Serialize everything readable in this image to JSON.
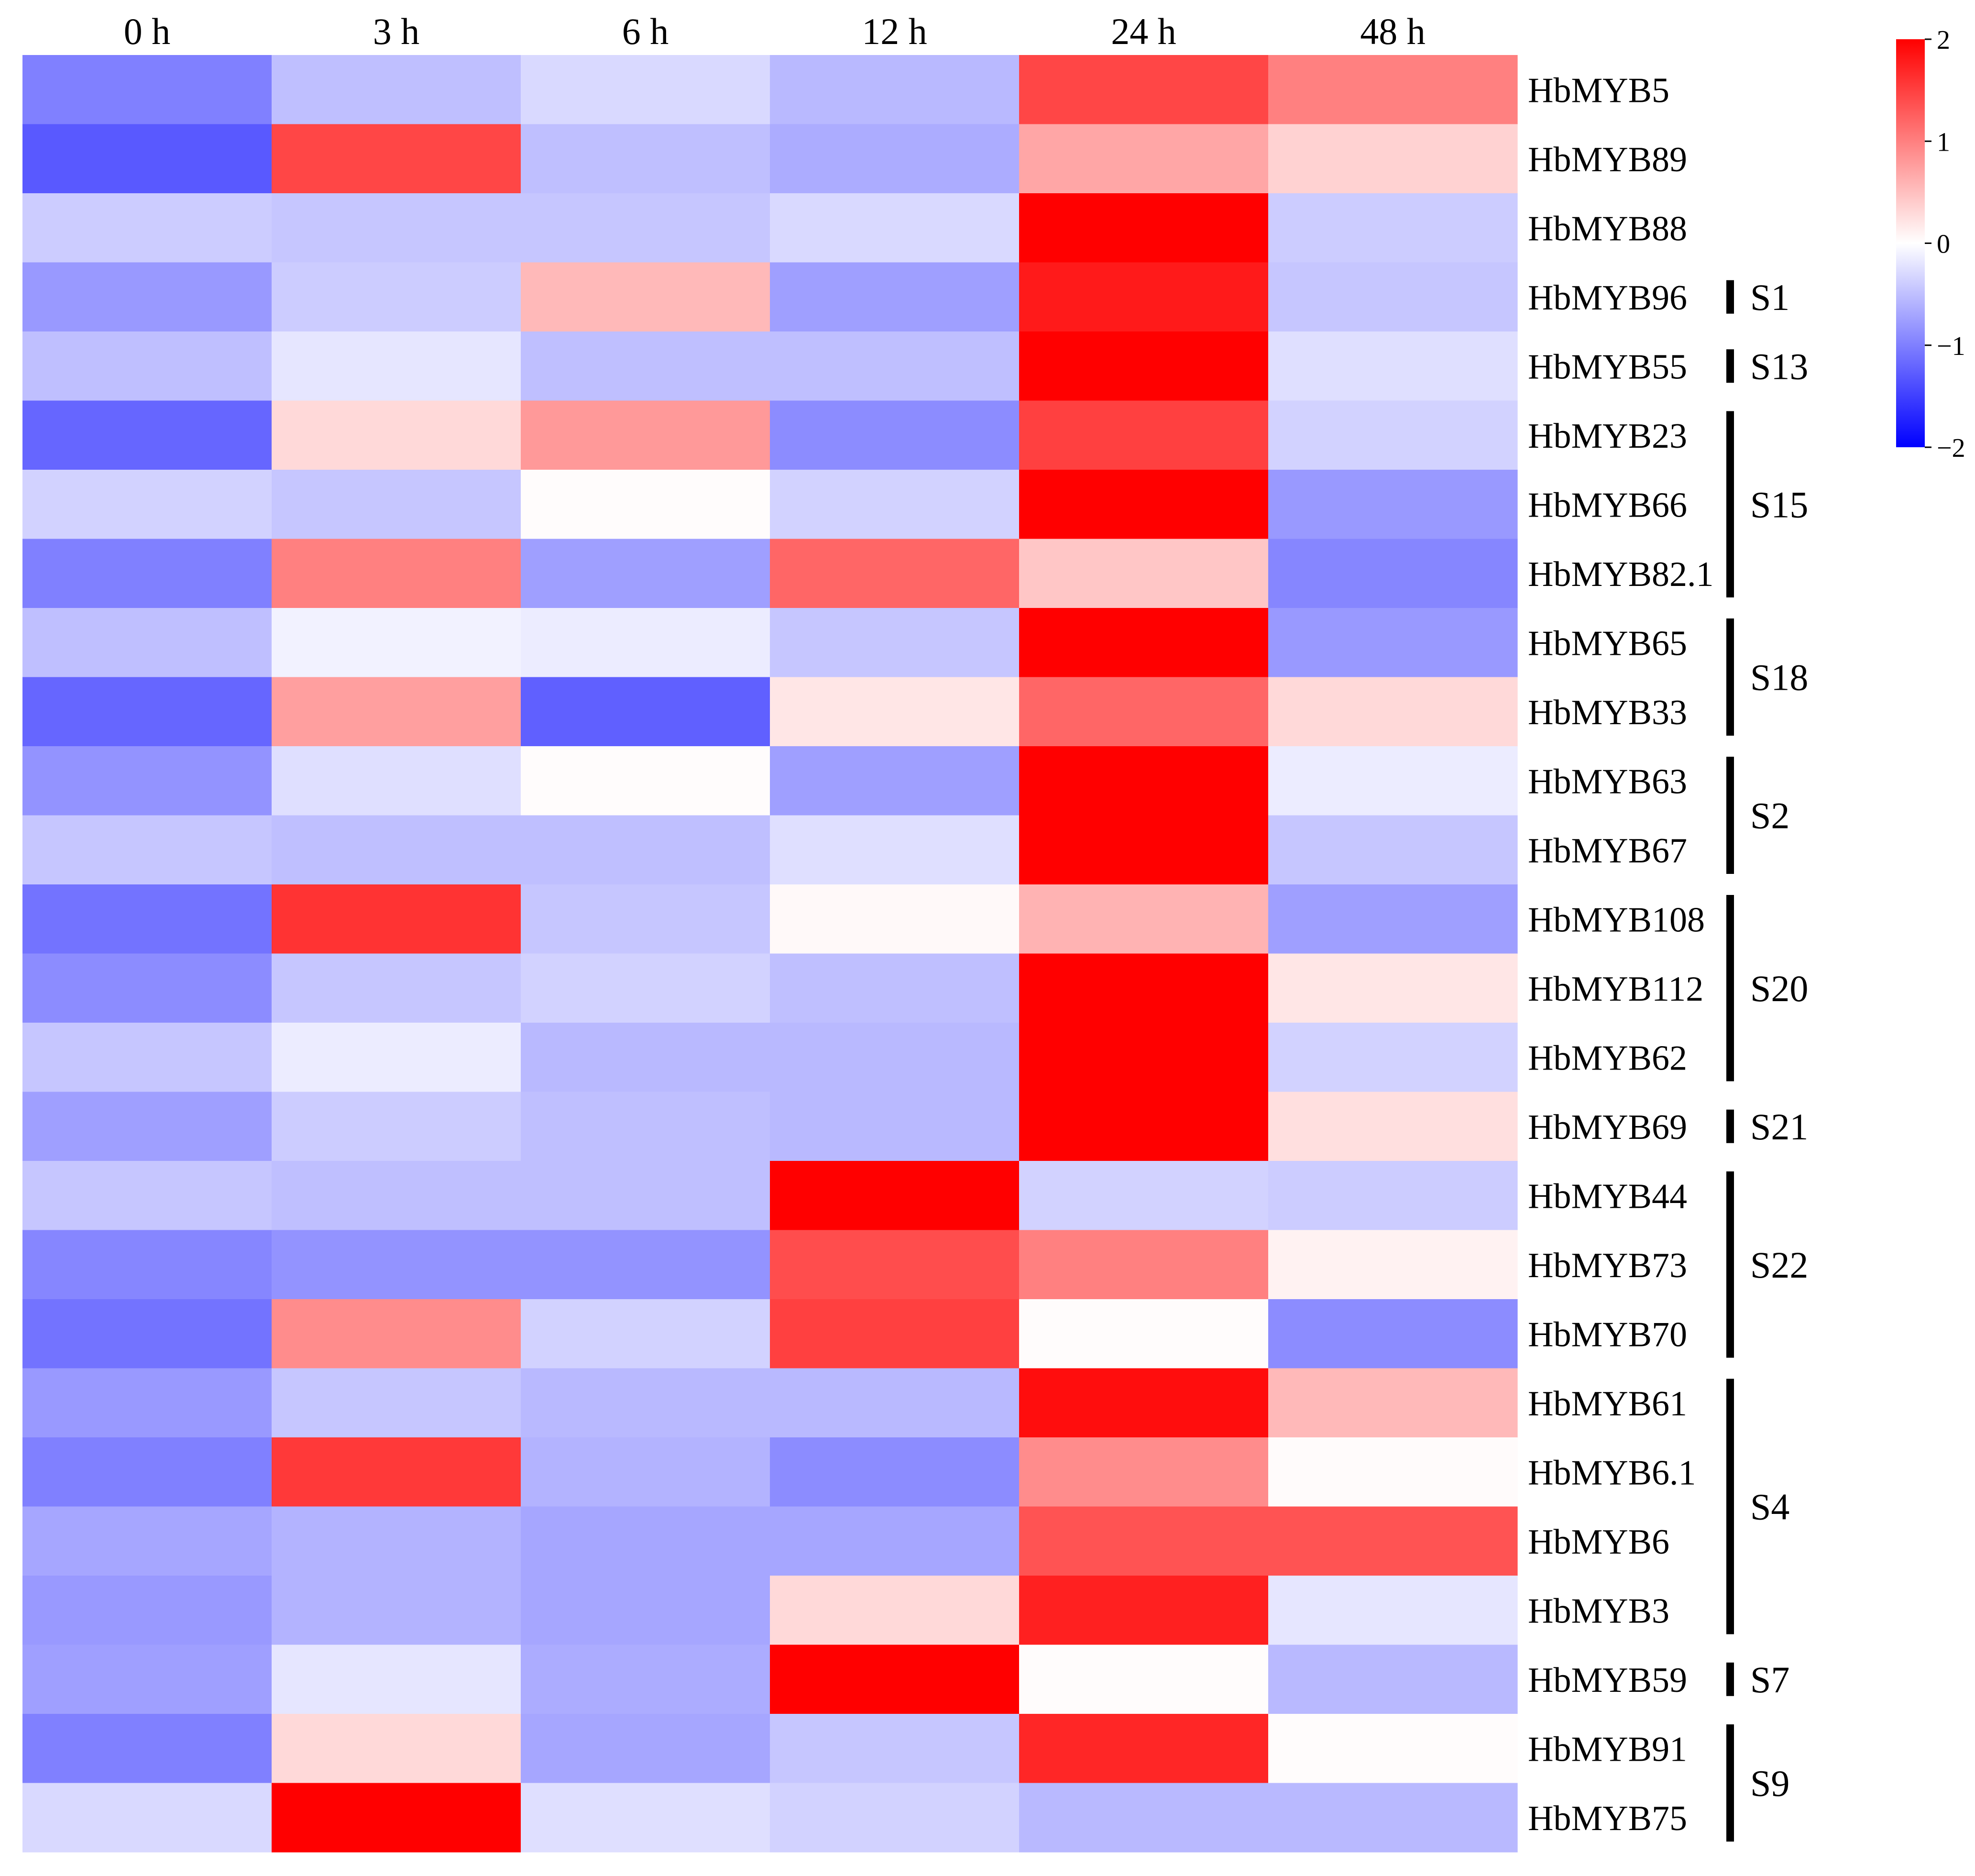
{
  "chart_data": {
    "type": "heatmap",
    "title": "",
    "columns": [
      "0 h",
      "3 h",
      "6 h",
      "12 h",
      "24 h",
      "48 h"
    ],
    "rows": [
      "HbMYB5",
      "HbMYB89",
      "HbMYB88",
      "HbMYB96",
      "HbMYB55",
      "HbMYB23",
      "HbMYB66",
      "HbMYB82.1",
      "HbMYB65",
      "HbMYB33",
      "HbMYB63",
      "HbMYB67",
      "HbMYB108",
      "HbMYB112",
      "HbMYB62",
      "HbMYB69",
      "HbMYB44",
      "HbMYB73",
      "HbMYB70",
      "HbMYB61",
      "HbMYB6.1",
      "HbMYB6",
      "HbMYB3",
      "HbMYB59",
      "HbMYB91",
      "HbMYB75"
    ],
    "values": [
      [
        -1.0,
        -0.5,
        -0.3,
        -0.55,
        1.45,
        1.0
      ],
      [
        -1.3,
        1.45,
        -0.5,
        -0.65,
        0.7,
        0.35
      ],
      [
        -0.4,
        -0.45,
        -0.45,
        -0.3,
        2.0,
        -0.4
      ],
      [
        -0.8,
        -0.4,
        0.55,
        -0.75,
        1.8,
        -0.45
      ],
      [
        -0.5,
        -0.2,
        -0.5,
        -0.5,
        2.0,
        -0.25
      ],
      [
        -1.2,
        0.3,
        0.8,
        -0.9,
        1.5,
        -0.35
      ],
      [
        -0.35,
        -0.45,
        0.02,
        -0.35,
        2.0,
        -0.8
      ],
      [
        -1.0,
        1.0,
        -0.75,
        1.2,
        0.45,
        -0.95
      ],
      [
        -0.5,
        -0.1,
        -0.15,
        -0.45,
        2.0,
        -0.8
      ],
      [
        -1.2,
        0.75,
        -1.25,
        0.2,
        1.2,
        0.3
      ],
      [
        -0.85,
        -0.25,
        0.02,
        -0.75,
        2.0,
        -0.15
      ],
      [
        -0.45,
        -0.5,
        -0.5,
        -0.25,
        2.0,
        -0.45
      ],
      [
        -1.1,
        1.6,
        -0.45,
        0.05,
        0.6,
        -0.75
      ],
      [
        -0.9,
        -0.45,
        -0.35,
        -0.5,
        2.0,
        0.2
      ],
      [
        -0.45,
        -0.15,
        -0.55,
        -0.55,
        2.0,
        -0.35
      ],
      [
        -0.75,
        -0.4,
        -0.5,
        -0.55,
        2.0,
        0.25
      ],
      [
        -0.45,
        -0.5,
        -0.5,
        2.0,
        -0.35,
        -0.4
      ],
      [
        -0.95,
        -0.85,
        -0.85,
        1.4,
        1.0,
        0.1
      ],
      [
        -1.1,
        0.9,
        -0.35,
        1.5,
        0.02,
        -0.9
      ],
      [
        -0.8,
        -0.45,
        -0.55,
        -0.55,
        1.9,
        0.55
      ],
      [
        -1.0,
        1.55,
        -0.6,
        -0.9,
        0.9,
        0.03
      ],
      [
        -0.7,
        -0.6,
        -0.7,
        -0.7,
        1.35,
        1.35
      ],
      [
        -0.8,
        -0.6,
        -0.7,
        0.3,
        1.75,
        -0.2
      ],
      [
        -0.75,
        -0.2,
        -0.65,
        2.0,
        0.02,
        -0.55
      ],
      [
        -1.0,
        0.3,
        -0.7,
        -0.45,
        1.7,
        0.02
      ],
      [
        -0.3,
        2.0,
        -0.25,
        -0.35,
        -0.55,
        -0.55
      ]
    ],
    "groups": [
      {
        "label": "S1",
        "rows": [
          "HbMYB96"
        ]
      },
      {
        "label": "S13",
        "rows": [
          "HbMYB55"
        ]
      },
      {
        "label": "S15",
        "rows": [
          "HbMYB23",
          "HbMYB66",
          "HbMYB82.1"
        ]
      },
      {
        "label": "S18",
        "rows": [
          "HbMYB65",
          "HbMYB33"
        ]
      },
      {
        "label": "S2",
        "rows": [
          "HbMYB63",
          "HbMYB67"
        ]
      },
      {
        "label": "S20",
        "rows": [
          "HbMYB108",
          "HbMYB112",
          "HbMYB62"
        ]
      },
      {
        "label": "S21",
        "rows": [
          "HbMYB69"
        ]
      },
      {
        "label": "S22",
        "rows": [
          "HbMYB44",
          "HbMYB73",
          "HbMYB70"
        ]
      },
      {
        "label": "S4",
        "rows": [
          "HbMYB61",
          "HbMYB6.1",
          "HbMYB6",
          "HbMYB3"
        ]
      },
      {
        "label": "S7",
        "rows": [
          "HbMYB59"
        ]
      },
      {
        "label": "S9",
        "rows": [
          "HbMYB91",
          "HbMYB75"
        ]
      }
    ],
    "colorscale": {
      "min": -2,
      "max": 2,
      "low_color": "#0000ff",
      "mid_color": "#ffffff",
      "high_color": "#ff0000",
      "ticks": [
        2,
        1,
        0,
        -1,
        -2
      ],
      "tick_labels": [
        "2",
        "1",
        "0",
        "−1",
        "−2"
      ]
    },
    "legend_position": "top-right",
    "grid": false
  }
}
